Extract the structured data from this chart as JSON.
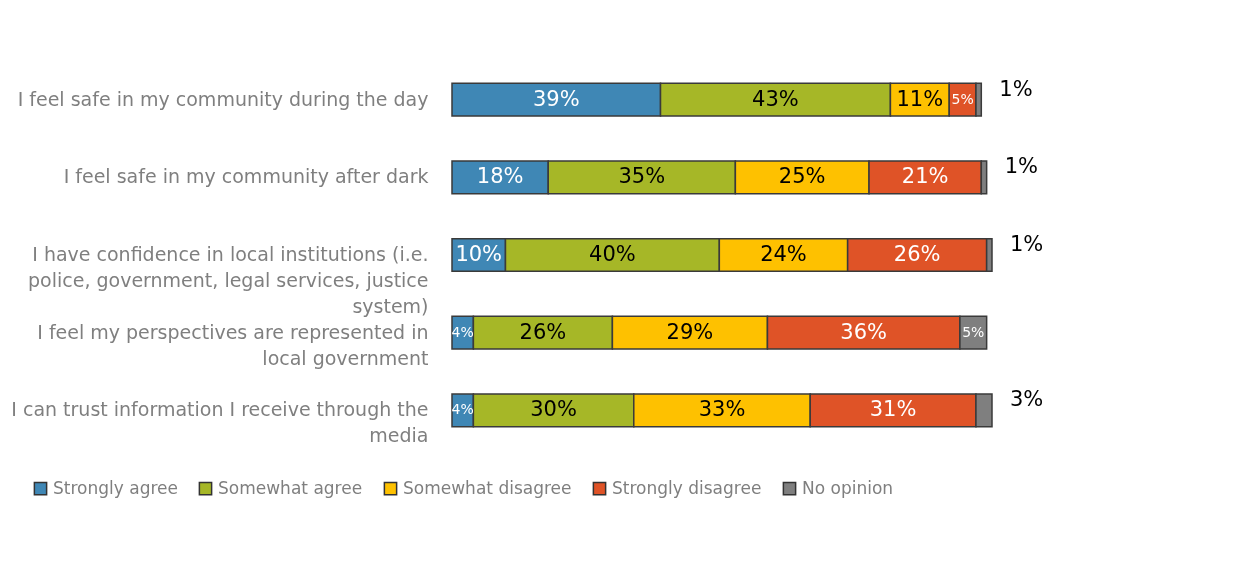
{
  "chart_data": {
    "type": "bar",
    "orientation": "horizontal",
    "stacked": true,
    "legend": "bottom",
    "categories": [
      "I feel safe in my community during the day",
      "I feel safe in my community after dark",
      "I have confidence in local institutions (i.e. police, government, legal services, justice system)",
      "I feel my perspectives are represented in local government",
      "I can trust information I receive through the media"
    ],
    "series": [
      {
        "name": "Strongly agree",
        "color": "#3f87b5",
        "values": [
          39,
          18,
          10,
          4,
          4
        ],
        "value_labels": [
          "39%",
          "18%",
          "10%",
          "4%",
          "4%"
        ]
      },
      {
        "name": "Somewhat agree",
        "color": "#a6b727",
        "values": [
          43,
          35,
          40,
          26,
          30
        ],
        "value_labels": [
          "43%",
          "35%",
          "40%",
          "26%",
          "30%"
        ]
      },
      {
        "name": "Somewhat disagree",
        "color": "#fec100",
        "values": [
          11,
          25,
          24,
          29,
          33
        ],
        "value_labels": [
          "11%",
          "25%",
          "24%",
          "29%",
          "33%"
        ]
      },
      {
        "name": "Strongly disagree",
        "color": "#df5327",
        "values": [
          5,
          21,
          26,
          36,
          31
        ],
        "value_labels": [
          "5%",
          "21%",
          "26%",
          "36%",
          "31%"
        ]
      },
      {
        "name": "No opinion",
        "color": "#7f7f7f",
        "values": [
          1,
          1,
          1,
          5,
          3
        ],
        "value_labels": [
          "1%",
          "1%",
          "1%",
          "5%",
          "3%"
        ]
      }
    ]
  }
}
